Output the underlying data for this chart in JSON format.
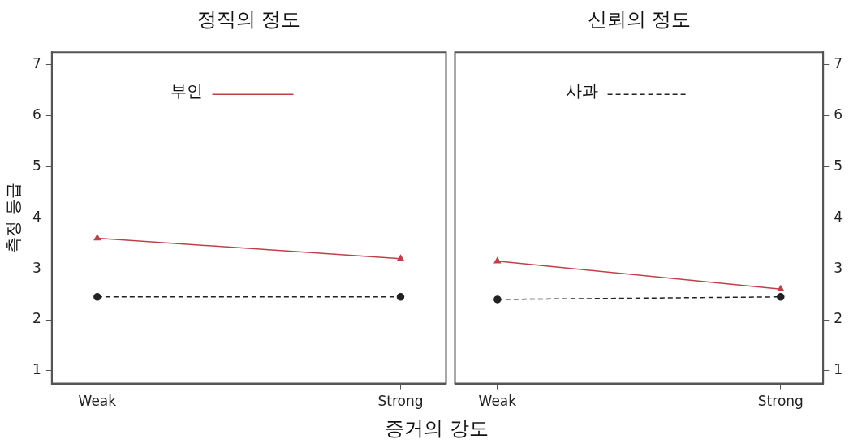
{
  "chart_data": [
    {
      "type": "line",
      "title": "정직의 정도",
      "xlabel": "증거의 강도",
      "ylabel": "측정 등급",
      "categories": [
        "Weak",
        "Strong"
      ],
      "ylim": [
        0.75,
        7.25
      ],
      "yticks": [
        1,
        2,
        3,
        4,
        5,
        6,
        7
      ],
      "legend": "top",
      "series": [
        {
          "name": "부인",
          "color": "#c0404a",
          "marker": "triangle",
          "line_style": "solid",
          "values": [
            3.6,
            3.2
          ]
        },
        {
          "color": "#222222",
          "marker": "circle",
          "line_style": "dashed",
          "values": [
            2.45,
            2.45
          ]
        }
      ]
    },
    {
      "type": "line",
      "title": "신뢰의 정도",
      "categories": [
        "Weak",
        "Strong"
      ],
      "y2lim": [
        0.75,
        7.25
      ],
      "y2ticks": [
        1,
        2,
        3,
        4,
        5,
        6,
        7
      ],
      "legend": "top",
      "series": [
        {
          "color": "#c0404a",
          "marker": "triangle",
          "line_style": "solid",
          "axis": "y2",
          "values": [
            3.15,
            2.6
          ]
        },
        {
          "name": "사과",
          "color": "#222222",
          "marker": "circle",
          "line_style": "dashed",
          "axis": "y2",
          "values": [
            2.4,
            2.45
          ]
        }
      ]
    }
  ]
}
